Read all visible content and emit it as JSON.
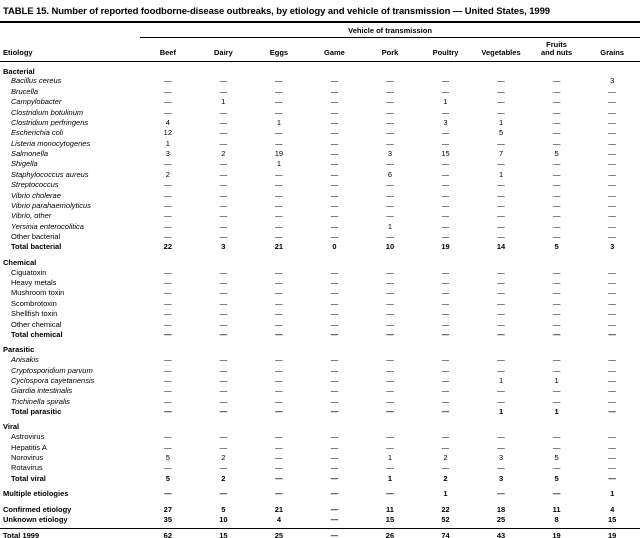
{
  "colors": {
    "text": "#000000",
    "background": "#ffffff",
    "rule": "#000000"
  },
  "page": {
    "title": "TABLE 15. Number of reported foodborne-disease outbreaks, by etiology and vehicle of transmission — United States, 1999"
  },
  "table": {
    "spanner_label": "Vehicle of transmission",
    "etiology_header": "Etiology",
    "columns": [
      "Beef",
      "Dairy",
      "Eggs",
      "Game",
      "Pork",
      "Poultry",
      "Vegetables",
      "Fruits\nand nuts",
      "Grains"
    ],
    "sections": [
      {
        "name": "Bacterial",
        "rows": [
          {
            "label": "Bacillus cereus",
            "style": "italic",
            "values": [
              "—",
              "—",
              "—",
              "—",
              "—",
              "—",
              "—",
              "—",
              "3"
            ]
          },
          {
            "label": "Brucella",
            "style": "italic",
            "values": [
              "—",
              "—",
              "—",
              "—",
              "—",
              "—",
              "—",
              "—",
              "—"
            ]
          },
          {
            "label": "Campylobacter",
            "style": "italic",
            "values": [
              "—",
              "1",
              "—",
              "—",
              "—",
              "1",
              "—",
              "—",
              "—"
            ]
          },
          {
            "label": "Clostridium botulinum",
            "style": "italic",
            "values": [
              "—",
              "—",
              "—",
              "—",
              "—",
              "—",
              "—",
              "—",
              "—"
            ]
          },
          {
            "label": "Clostridium perfringens",
            "style": "italic",
            "values": [
              "4",
              "—",
              "1",
              "—",
              "—",
              "3",
              "1",
              "—",
              "—"
            ]
          },
          {
            "label": "Escherichia coli",
            "style": "italic",
            "values": [
              "12",
              "—",
              "—",
              "—",
              "—",
              "—",
              "5",
              "—",
              "—"
            ]
          },
          {
            "label": "Listeria monocytogenes",
            "style": "italic",
            "values": [
              "1",
              "—",
              "—",
              "—",
              "—",
              "—",
              "—",
              "—",
              "—"
            ]
          },
          {
            "label": "Salmonella",
            "style": "italic",
            "values": [
              "3",
              "2",
              "19",
              "—",
              "3",
              "15",
              "7",
              "5",
              "—"
            ]
          },
          {
            "label": "Shigella",
            "style": "italic",
            "values": [
              "—",
              "—",
              "1",
              "—",
              "—",
              "—",
              "—",
              "—",
              "—"
            ]
          },
          {
            "label": "Staphylococcus aureus",
            "style": "italic",
            "values": [
              "2",
              "—",
              "—",
              "—",
              "6",
              "—",
              "1",
              "—",
              "—"
            ]
          },
          {
            "label": "Streptococcus",
            "style": "italic",
            "values": [
              "—",
              "—",
              "—",
              "—",
              "—",
              "—",
              "—",
              "—",
              "—"
            ]
          },
          {
            "label": "Vibrio cholerae",
            "style": "italic",
            "values": [
              "—",
              "—",
              "—",
              "—",
              "—",
              "—",
              "—",
              "—",
              "—"
            ]
          },
          {
            "label": "Vibrio parahaemolyticus",
            "style": "italic",
            "values": [
              "—",
              "—",
              "—",
              "—",
              "—",
              "—",
              "—",
              "—",
              "—"
            ]
          },
          {
            "label": "Vibrio, other",
            "style": "italic",
            "values": [
              "—",
              "—",
              "—",
              "—",
              "—",
              "—",
              "—",
              "—",
              "—"
            ]
          },
          {
            "label": "Yersinia enterocolitica",
            "style": "italic",
            "values": [
              "—",
              "—",
              "—",
              "—",
              "1",
              "—",
              "—",
              "—",
              "—"
            ]
          },
          {
            "label": "Other bacterial",
            "style": "plain",
            "values": [
              "—",
              "—",
              "—",
              "—",
              "—",
              "—",
              "—",
              "—",
              "—"
            ]
          },
          {
            "label": "Total bacterial",
            "style": "total",
            "values": [
              "22",
              "3",
              "21",
              "0",
              "10",
              "19",
              "14",
              "5",
              "3"
            ]
          }
        ]
      },
      {
        "name": "Chemical",
        "rows": [
          {
            "label": "Ciguatoxin",
            "style": "plain",
            "values": [
              "—",
              "—",
              "—",
              "—",
              "—",
              "—",
              "—",
              "—",
              "—"
            ]
          },
          {
            "label": "Heavy metals",
            "style": "plain",
            "values": [
              "—",
              "—",
              "—",
              "—",
              "—",
              "—",
              "—",
              "—",
              "—"
            ]
          },
          {
            "label": "Mushroom toxin",
            "style": "plain",
            "values": [
              "—",
              "—",
              "—",
              "—",
              "—",
              "—",
              "—",
              "—",
              "—"
            ]
          },
          {
            "label": "Scombrotoxin",
            "style": "plain",
            "values": [
              "—",
              "—",
              "—",
              "—",
              "—",
              "—",
              "—",
              "—",
              "—"
            ]
          },
          {
            "label": "Shellfish toxin",
            "style": "plain",
            "values": [
              "—",
              "—",
              "—",
              "—",
              "—",
              "—",
              "—",
              "—",
              "—"
            ]
          },
          {
            "label": "Other chemical",
            "style": "plain",
            "values": [
              "—",
              "—",
              "—",
              "—",
              "—",
              "—",
              "—",
              "—",
              "—"
            ]
          },
          {
            "label": "Total chemical",
            "style": "total",
            "values": [
              "—",
              "—",
              "—",
              "—",
              "—",
              "—",
              "—",
              "—",
              "—"
            ]
          }
        ]
      },
      {
        "name": "Parasitic",
        "rows": [
          {
            "label": "Anisakis",
            "style": "italic",
            "values": [
              "—",
              "—",
              "—",
              "—",
              "—",
              "—",
              "—",
              "—",
              "—"
            ]
          },
          {
            "label": "Cryptosporidium parvum",
            "style": "italic",
            "values": [
              "—",
              "—",
              "—",
              "—",
              "—",
              "—",
              "—",
              "—",
              "—"
            ]
          },
          {
            "label": "Cyclospora cayetanensis",
            "style": "italic",
            "values": [
              "—",
              "—",
              "—",
              "—",
              "—",
              "—",
              "1",
              "1",
              "—"
            ]
          },
          {
            "label": "Giardia intestinalis",
            "style": "italic",
            "values": [
              "—",
              "—",
              "—",
              "—",
              "—",
              "—",
              "—",
              "—",
              "—"
            ]
          },
          {
            "label": "Trichinella spiralis",
            "style": "italic",
            "values": [
              "—",
              "—",
              "—",
              "—",
              "—",
              "—",
              "—",
              "—",
              "—"
            ]
          },
          {
            "label": "Total parasitic",
            "style": "total",
            "values": [
              "—",
              "—",
              "—",
              "—",
              "—",
              "—",
              "1",
              "1",
              "—"
            ]
          }
        ]
      },
      {
        "name": "Viral",
        "rows": [
          {
            "label": "Astrovirus",
            "style": "plain",
            "values": [
              "—",
              "—",
              "—",
              "—",
              "—",
              "—",
              "—",
              "—",
              "—"
            ]
          },
          {
            "label": "Hepatitis A",
            "style": "plain",
            "values": [
              "—",
              "—",
              "—",
              "—",
              "—",
              "—",
              "—",
              "—",
              "—"
            ]
          },
          {
            "label": "Norovirus",
            "style": "plain",
            "values": [
              "5",
              "2",
              "—",
              "—",
              "1",
              "2",
              "3",
              "5",
              "—"
            ]
          },
          {
            "label": "Rotavirus",
            "style": "plain",
            "values": [
              "—",
              "—",
              "—",
              "—",
              "—",
              "—",
              "—",
              "—",
              "—"
            ]
          },
          {
            "label": "Total viral",
            "style": "total",
            "values": [
              "5",
              "2",
              "—",
              "—",
              "1",
              "2",
              "3",
              "5",
              "—"
            ]
          }
        ]
      }
    ],
    "summary_rows": [
      {
        "label": "Multiple etiologies",
        "style": "summary",
        "gap_top": true,
        "values": [
          "—",
          "—",
          "—",
          "—",
          "—",
          "1",
          "—",
          "—",
          "1"
        ]
      },
      {
        "label": "Confirmed etiology",
        "style": "summary",
        "gap_top": true,
        "values": [
          "27",
          "5",
          "21",
          "—",
          "11",
          "22",
          "18",
          "11",
          "4"
        ]
      },
      {
        "label": "Unknown etiology",
        "style": "summary",
        "pad_bottom": true,
        "values": [
          "35",
          "10",
          "4",
          "—",
          "15",
          "52",
          "25",
          "8",
          "15"
        ]
      },
      {
        "label": "Total 1999",
        "style": "summary",
        "rule_above": true,
        "rule_below": true,
        "values": [
          "62",
          "15",
          "25",
          "—",
          "26",
          "74",
          "43",
          "19",
          "19"
        ]
      }
    ]
  }
}
